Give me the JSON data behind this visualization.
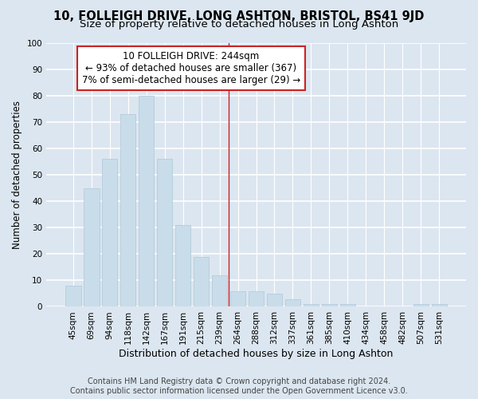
{
  "title": "10, FOLLEIGH DRIVE, LONG ASHTON, BRISTOL, BS41 9JD",
  "subtitle": "Size of property relative to detached houses in Long Ashton",
  "xlabel": "Distribution of detached houses by size in Long Ashton",
  "ylabel": "Number of detached properties",
  "bar_color": "#c9dcea",
  "bar_edgecolor": "#aec8d8",
  "figure_bg": "#dce6f0",
  "axes_bg": "#dce6f0",
  "grid_color": "#ffffff",
  "categories": [
    "45sqm",
    "69sqm",
    "94sqm",
    "118sqm",
    "142sqm",
    "167sqm",
    "191sqm",
    "215sqm",
    "239sqm",
    "264sqm",
    "288sqm",
    "312sqm",
    "337sqm",
    "361sqm",
    "385sqm",
    "410sqm",
    "434sqm",
    "458sqm",
    "482sqm",
    "507sqm",
    "531sqm"
  ],
  "values": [
    8,
    45,
    56,
    73,
    80,
    56,
    31,
    19,
    12,
    6,
    6,
    5,
    3,
    1,
    1,
    1,
    0,
    0,
    0,
    1,
    1
  ],
  "ylim": [
    0,
    100
  ],
  "yticks": [
    0,
    10,
    20,
    30,
    40,
    50,
    60,
    70,
    80,
    90,
    100
  ],
  "vline_x": 8.5,
  "vline_color": "#cc2222",
  "annotation_text_line1": "10 FOLLEIGH DRIVE: 244sqm",
  "annotation_text_line2": "← 93% of detached houses are smaller (367)",
  "annotation_text_line3": "7% of semi-detached houses are larger (29) →",
  "annotation_box_edgecolor": "#cc2222",
  "annotation_box_facecolor": "#ffffff",
  "footer_line1": "Contains HM Land Registry data © Crown copyright and database right 2024.",
  "footer_line2": "Contains public sector information licensed under the Open Government Licence v3.0.",
  "title_fontsize": 10.5,
  "subtitle_fontsize": 9.5,
  "xlabel_fontsize": 9,
  "ylabel_fontsize": 8.5,
  "tick_fontsize": 7.5,
  "annotation_fontsize": 8.5,
  "footer_fontsize": 7
}
